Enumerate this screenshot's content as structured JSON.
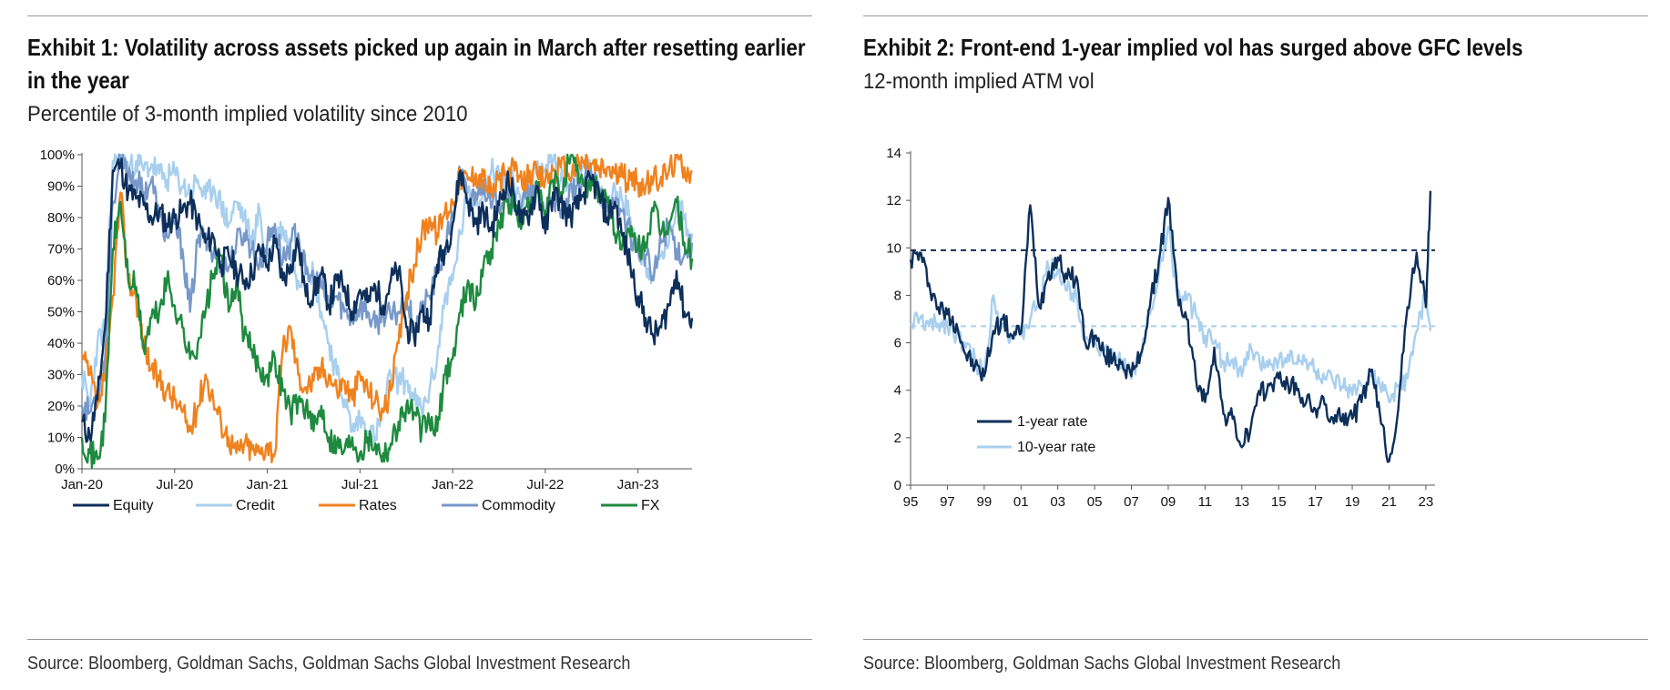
{
  "colors": {
    "equity": "#0d2f5a",
    "credit": "#a8cfee",
    "rates": "#f0821e",
    "commodity": "#7798c8",
    "fx": "#1e8a3f",
    "one_year": "#0d2f5a",
    "ten_year": "#a8cfee"
  },
  "exhibit1": {
    "title": "Exhibit 1: Volatility across assets picked up again in March after resetting earlier in the year",
    "subtitle": "Percentile of 3-month implied volatility since 2010",
    "source": "Source: Bloomberg, Goldman Sachs, Goldman Sachs Global Investment Research",
    "chart_data": {
      "type": "line",
      "title": "Exhibit 1: Volatility across assets picked up again in March after resetting earlier in the year",
      "ylabel": "",
      "xlabel": "",
      "ylim": [
        0,
        100
      ],
      "xlim": [
        0,
        39.5
      ],
      "x_unit": "months since Jan-20",
      "yticks": [
        0,
        10,
        20,
        30,
        40,
        50,
        60,
        70,
        80,
        90,
        100
      ],
      "ytick_labels": [
        "0%",
        "10%",
        "20%",
        "30%",
        "40%",
        "50%",
        "60%",
        "70%",
        "80%",
        "90%",
        "100%"
      ],
      "xticks": [
        0,
        6,
        12,
        18,
        24,
        30,
        36
      ],
      "xtick_labels": [
        "Jan-20",
        "Jul-20",
        "Jan-21",
        "Jul-21",
        "Jan-22",
        "Jul-22",
        "Jan-23"
      ],
      "legend_position": "bottom",
      "x": [
        0,
        0.5,
        1,
        1.5,
        2,
        2.5,
        3,
        3.5,
        4,
        4.5,
        5,
        5.5,
        6,
        6.5,
        7,
        7.5,
        8,
        8.5,
        9,
        9.5,
        10,
        10.5,
        11,
        11.5,
        12,
        12.5,
        13,
        13.5,
        14,
        14.5,
        15,
        15.5,
        16,
        16.5,
        17,
        17.5,
        18,
        18.5,
        19,
        19.5,
        20,
        20.5,
        21,
        21.5,
        22,
        22.5,
        23,
        23.5,
        24,
        24.5,
        25,
        25.5,
        26,
        26.5,
        27,
        27.5,
        28,
        28.5,
        29,
        29.5,
        30,
        30.5,
        31,
        31.5,
        32,
        32.5,
        33,
        33.5,
        34,
        34.5,
        35,
        35.5,
        36,
        36.5,
        37,
        37.5,
        38,
        38.5,
        39,
        39.5
      ],
      "series": [
        {
          "name": "Equity",
          "values": [
            15,
            10,
            22,
            45,
            95,
            97,
            88,
            86,
            84,
            80,
            82,
            78,
            80,
            82,
            85,
            79,
            72,
            74,
            65,
            68,
            63,
            60,
            62,
            70,
            65,
            72,
            60,
            65,
            72,
            55,
            56,
            62,
            52,
            60,
            58,
            50,
            57,
            53,
            58,
            52,
            60,
            63,
            45,
            42,
            50,
            48,
            65,
            70,
            78,
            95,
            85,
            78,
            82,
            76,
            84,
            92,
            87,
            78,
            82,
            90,
            75,
            88,
            85,
            80,
            83,
            88,
            92,
            87,
            80,
            85,
            74,
            65,
            55,
            48,
            42,
            45,
            52,
            63,
            50,
            48
          ]
        },
        {
          "name": "Credit",
          "values": [
            30,
            20,
            40,
            45,
            98,
            100,
            96,
            98,
            95,
            97,
            94,
            92,
            94,
            90,
            88,
            92,
            86,
            90,
            84,
            78,
            85,
            80,
            72,
            82,
            64,
            74,
            77,
            70,
            60,
            65,
            62,
            50,
            40,
            30,
            22,
            12,
            16,
            12,
            10,
            18,
            30,
            28,
            28,
            22,
            18,
            25,
            35,
            55,
            60,
            75,
            88,
            85,
            90,
            95,
            94,
            92,
            90,
            85,
            93,
            98,
            95,
            98,
            92,
            90,
            95,
            97,
            93,
            88,
            82,
            90,
            85,
            80,
            70,
            65,
            62,
            68,
            72,
            85,
            80,
            75
          ]
        },
        {
          "name": "Rates",
          "values": [
            35,
            30,
            20,
            28,
            55,
            88,
            60,
            55,
            40,
            32,
            28,
            25,
            22,
            18,
            12,
            20,
            30,
            22,
            15,
            10,
            5,
            8,
            6,
            5,
            8,
            5,
            38,
            45,
            30,
            26,
            28,
            32,
            30,
            25,
            28,
            22,
            30,
            25,
            22,
            18,
            25,
            40,
            55,
            65,
            75,
            80,
            75,
            82,
            85,
            93,
            92,
            94,
            93,
            88,
            92,
            94,
            95,
            90,
            95,
            93,
            92,
            95,
            96,
            94,
            96,
            98,
            97,
            95,
            96,
            94,
            93,
            92,
            91,
            90,
            92,
            93,
            95,
            99,
            96,
            95
          ]
        },
        {
          "name": "Commodity",
          "values": [
            20,
            18,
            25,
            35,
            85,
            98,
            94,
            92,
            88,
            92,
            80,
            74,
            78,
            70,
            50,
            72,
            75,
            68,
            66,
            64,
            72,
            75,
            70,
            65,
            72,
            78,
            66,
            72,
            75,
            62,
            60,
            58,
            52,
            55,
            50,
            48,
            52,
            50,
            45,
            50,
            48,
            50,
            55,
            45,
            50,
            55,
            62,
            70,
            80,
            95,
            85,
            88,
            92,
            83,
            85,
            90,
            82,
            85,
            87,
            88,
            82,
            88,
            80,
            85,
            90,
            92,
            93,
            88,
            85,
            83,
            82,
            75,
            70,
            68,
            60,
            72,
            78,
            70,
            68,
            72
          ]
        },
        {
          "name": "FX",
          "values": [
            10,
            5,
            3,
            15,
            70,
            85,
            60,
            58,
            38,
            48,
            50,
            60,
            52,
            45,
            35,
            40,
            50,
            62,
            68,
            50,
            60,
            42,
            38,
            32,
            30,
            35,
            25,
            18,
            22,
            20,
            12,
            20,
            10,
            8,
            6,
            10,
            5,
            10,
            8,
            5,
            8,
            15,
            20,
            18,
            12,
            15,
            12,
            30,
            35,
            50,
            60,
            52,
            65,
            70,
            78,
            85,
            83,
            78,
            85,
            88,
            80,
            92,
            88,
            98,
            95,
            90,
            92,
            88,
            85,
            75,
            72,
            74,
            70,
            72,
            82,
            75,
            78,
            85,
            72,
            67
          ]
        }
      ]
    }
  },
  "exhibit2": {
    "title": "Exhibit 2: Front-end 1-year implied vol has surged above GFC levels",
    "subtitle": "12-month implied ATM vol",
    "source": "Source: Bloomberg, Goldman Sachs Global Investment Research",
    "chart_data": {
      "type": "line",
      "title": "Exhibit 2: Front-end 1-year implied vol has surged above GFC levels",
      "ylabel": "",
      "xlabel": "",
      "ylim": [
        0,
        14
      ],
      "xlim": [
        1995,
        2023.5
      ],
      "yticks": [
        0,
        2,
        4,
        6,
        8,
        10,
        12,
        14
      ],
      "ytick_labels": [
        "0",
        "2",
        "4",
        "6",
        "8",
        "10",
        "12",
        "14"
      ],
      "xticks": [
        1995,
        1997,
        1999,
        2001,
        2003,
        2005,
        2007,
        2009,
        2011,
        2013,
        2015,
        2017,
        2019,
        2021,
        2023
      ],
      "xtick_labels": [
        "95",
        "97",
        "99",
        "01",
        "03",
        "05",
        "07",
        "09",
        "11",
        "13",
        "15",
        "17",
        "19",
        "21",
        "23"
      ],
      "legend_position": "lower-left",
      "reference_lines": [
        {
          "series": "1-year rate",
          "value": 9.9
        },
        {
          "series": "10-year rate",
          "value": 6.7
        }
      ],
      "x": [
        1995,
        1995.5,
        1996,
        1996.5,
        1997,
        1997.5,
        1998,
        1998.5,
        1999,
        1999.5,
        2000,
        2000.5,
        2001,
        2001.5,
        2002,
        2002.5,
        2003,
        2003.5,
        2004,
        2004.5,
        2005,
        2005.5,
        2006,
        2006.5,
        2007,
        2007.5,
        2008,
        2008.5,
        2009,
        2009.5,
        2010,
        2010.5,
        2011,
        2011.5,
        2012,
        2012.5,
        2013,
        2013.5,
        2014,
        2014.5,
        2015,
        2015.5,
        2016,
        2016.5,
        2017,
        2017.5,
        2018,
        2018.5,
        2019,
        2019.5,
        2020,
        2020.5,
        2021,
        2021.5,
        2022,
        2022.5,
        2023,
        2023.25
      ],
      "series": [
        {
          "name": "1-year rate",
          "values": [
            9.5,
            9.8,
            8.5,
            7.5,
            7.2,
            6.8,
            5.5,
            5.0,
            4.6,
            6.5,
            7.0,
            6.3,
            6.4,
            11.8,
            7.5,
            9.0,
            9.6,
            8.7,
            8.8,
            6.0,
            6.3,
            5.5,
            5.3,
            5.2,
            4.6,
            5.5,
            7.5,
            9.5,
            12.1,
            8.0,
            7.0,
            4.5,
            3.5,
            5.8,
            3.0,
            2.8,
            1.6,
            2.5,
            3.8,
            4.2,
            4.5,
            4.3,
            4.0,
            3.5,
            3.2,
            3.4,
            2.6,
            3.0,
            2.8,
            3.5,
            4.8,
            3.0,
            1.0,
            3.2,
            7.5,
            9.8,
            7.5,
            12.4
          ]
        },
        {
          "name": "10-year rate",
          "values": [
            6.8,
            7.0,
            6.7,
            6.8,
            6.8,
            6.4,
            5.8,
            5.3,
            4.6,
            8.0,
            6.8,
            6.2,
            6.3,
            7.0,
            7.8,
            9.2,
            9.1,
            8.2,
            8.0,
            6.2,
            6.0,
            5.6,
            5.3,
            5.3,
            4.5,
            5.5,
            7.2,
            9.0,
            10.9,
            8.0,
            7.8,
            7.2,
            6.3,
            6.0,
            5.2,
            5.3,
            4.6,
            5.8,
            5.0,
            5.3,
            5.2,
            5.5,
            5.1,
            5.3,
            4.8,
            4.5,
            4.3,
            4.1,
            3.8,
            4.2,
            4.6,
            4.2,
            3.5,
            4.2,
            4.5,
            6.5,
            8.0,
            6.5
          ]
        }
      ]
    }
  }
}
